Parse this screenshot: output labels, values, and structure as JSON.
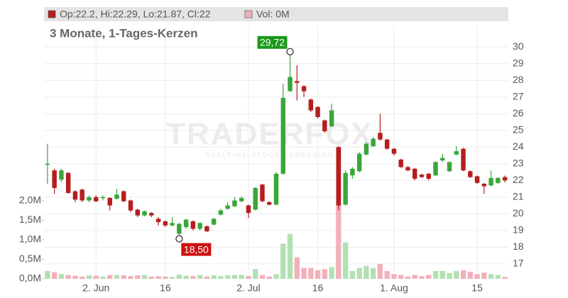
{
  "chart_data": {
    "type": "candlestick",
    "header": "Op:22.2, Hi:22.29, Lo:21.87, Cl:22",
    "volume_header": "Vol: 0M",
    "subtitle": "3 Monate, 1-Tages-Kerzen",
    "watermark": {
      "title": "TRADERFOX",
      "tagline": "REALTIME STOCK SCREENING"
    },
    "categories": [
      null,
      null,
      null,
      null,
      null,
      null,
      null,
      "2. Jun",
      null,
      null,
      null,
      null,
      null,
      null,
      null,
      null,
      null,
      "16",
      null,
      null,
      null,
      null,
      null,
      null,
      null,
      null,
      null,
      null,
      null,
      "2. Jul",
      null,
      null,
      null,
      null,
      null,
      null,
      null,
      null,
      null,
      "16",
      null,
      null,
      null,
      null,
      null,
      null,
      null,
      null,
      null,
      null,
      "1. Aug",
      null,
      null,
      null,
      null,
      null,
      null,
      null,
      null,
      null,
      null,
      null,
      "15",
      null,
      null,
      null,
      null
    ],
    "open": [
      22.95,
      22.6,
      22.05,
      22.45,
      21.35,
      21.45,
      20.8,
      21.0,
      20.95,
      20.95,
      20.9,
      21.35,
      20.8,
      20.25,
      19.9,
      20.05,
      19.7,
      19.55,
      19.3,
      18.8,
      19.2,
      19.55,
      19.1,
      19.25,
      19.35,
      19.95,
      20.3,
      20.45,
      20.75,
      20.5,
      20.25,
      21.75,
      20.7,
      20.55,
      22.4,
      27.35,
      27.95,
      27.65,
      26.85,
      26.4,
      25.6,
      25.25,
      24.0,
      20.55,
      22.3,
      22.55,
      23.55,
      24.05,
      24.85,
      24.45,
      23.9,
      23.25,
      22.8,
      22.7,
      22.35,
      22.4,
      22.3,
      23.2,
      22.55,
      23.55,
      23.9,
      22.55,
      22.25,
      21.8,
      21.7,
      21.85,
      22.2
    ],
    "high": [
      24.2,
      22.7,
      22.7,
      22.5,
      21.4,
      21.5,
      21.1,
      21.1,
      21.1,
      21.0,
      21.5,
      21.4,
      20.85,
      20.3,
      20.2,
      20.1,
      19.8,
      19.6,
      19.8,
      19.45,
      19.7,
      19.6,
      19.5,
      19.3,
      19.75,
      20.3,
      20.7,
      21.0,
      21.05,
      20.55,
      21.6,
      21.8,
      20.75,
      22.5,
      27.8,
      29.72,
      28.9,
      27.7,
      26.9,
      26.45,
      25.65,
      26.6,
      24.05,
      22.6,
      22.8,
      23.7,
      24.3,
      24.6,
      26.0,
      24.5,
      23.95,
      23.3,
      22.85,
      22.75,
      22.4,
      22.45,
      23.15,
      23.6,
      23.15,
      24.05,
      23.95,
      22.6,
      22.3,
      21.85,
      22.6,
      22.2,
      22.29
    ],
    "low": [
      21.8,
      21.2,
      21.9,
      21.2,
      20.7,
      20.7,
      20.7,
      20.7,
      20.8,
      20.2,
      20.85,
      20.7,
      20.1,
      19.8,
      19.85,
      19.8,
      19.3,
      19.2,
      19.25,
      18.5,
      19.1,
      19.0,
      19.0,
      18.9,
      19.3,
      19.9,
      20.25,
      20.4,
      20.7,
      19.75,
      20.2,
      20.7,
      20.5,
      20.5,
      22.35,
      27.3,
      26.8,
      27.0,
      26.1,
      25.7,
      24.85,
      25.2,
      20.2,
      20.5,
      22.1,
      22.5,
      23.5,
      24.0,
      24.4,
      23.85,
      23.5,
      22.75,
      22.55,
      22.0,
      22.15,
      22.0,
      22.25,
      23.1,
      22.5,
      23.5,
      22.55,
      22.15,
      21.8,
      21.2,
      21.65,
      21.8,
      21.87
    ],
    "close": [
      23.0,
      21.55,
      22.6,
      21.25,
      20.85,
      20.8,
      21.0,
      20.75,
      21.0,
      20.5,
      21.15,
      20.75,
      20.2,
      19.9,
      20.15,
      19.9,
      19.5,
      19.3,
      19.45,
      19.4,
      19.65,
      19.1,
      19.45,
      18.95,
      19.7,
      20.2,
      20.5,
      20.8,
      20.95,
      20.05,
      21.55,
      20.75,
      20.55,
      22.4,
      26.95,
      28.2,
      27.85,
      27.35,
      26.2,
      25.8,
      24.95,
      26.2,
      20.5,
      22.45,
      22.7,
      23.6,
      24.2,
      24.5,
      24.45,
      23.9,
      23.6,
      22.8,
      22.6,
      22.1,
      22.2,
      22.1,
      23.1,
      23.35,
      23.1,
      23.75,
      22.6,
      22.2,
      21.85,
      21.65,
      22.15,
      22.15,
      22.0
    ],
    "volume": [
      0.2,
      0.17,
      0.12,
      0.1,
      0.08,
      0.06,
      0.09,
      0.08,
      0.06,
      0.1,
      0.1,
      0.09,
      0.07,
      0.09,
      0.1,
      0.06,
      0.07,
      0.06,
      0.05,
      0.11,
      0.08,
      0.07,
      0.1,
      0.06,
      0.09,
      0.07,
      0.09,
      0.1,
      0.1,
      0.07,
      0.25,
      0.1,
      0.06,
      0.12,
      0.9,
      1.15,
      0.55,
      0.28,
      0.28,
      0.22,
      0.25,
      0.3,
      3.35,
      0.93,
      0.2,
      0.28,
      0.33,
      0.28,
      0.38,
      0.2,
      0.12,
      0.1,
      0.06,
      0.1,
      0.07,
      0.1,
      0.2,
      0.2,
      0.15,
      0.2,
      0.22,
      0.18,
      0.12,
      0.16,
      0.12,
      0.1,
      0.05
    ],
    "up_color": "#3aa63a",
    "down_color": "#b61e1e",
    "volume_up_color": "#b3e0b3",
    "volume_down_color": "#f2b0bb",
    "ylim": [
      16.1,
      31.2
    ],
    "yticks": [
      17,
      18,
      19,
      20,
      21,
      22,
      23,
      24,
      25,
      26,
      27,
      28,
      29,
      30
    ],
    "y2lim": [
      0,
      6.44
    ],
    "y2ticks": [
      {
        "value": 0,
        "label": "0,0M"
      },
      {
        "value": 0.5,
        "label": "0,5M"
      },
      {
        "value": 1.0,
        "label": "1,0M"
      },
      {
        "value": 1.5,
        "label": "1,5M"
      },
      {
        "value": 2.0,
        "label": "2,0M"
      }
    ],
    "grid": true,
    "annotations": [
      {
        "label": "29,72",
        "value": 29.72,
        "kind": "high",
        "color": "#1a9a1a"
      },
      {
        "label": "18,50",
        "value": 18.5,
        "kind": "low",
        "color": "#cc1111"
      }
    ]
  }
}
